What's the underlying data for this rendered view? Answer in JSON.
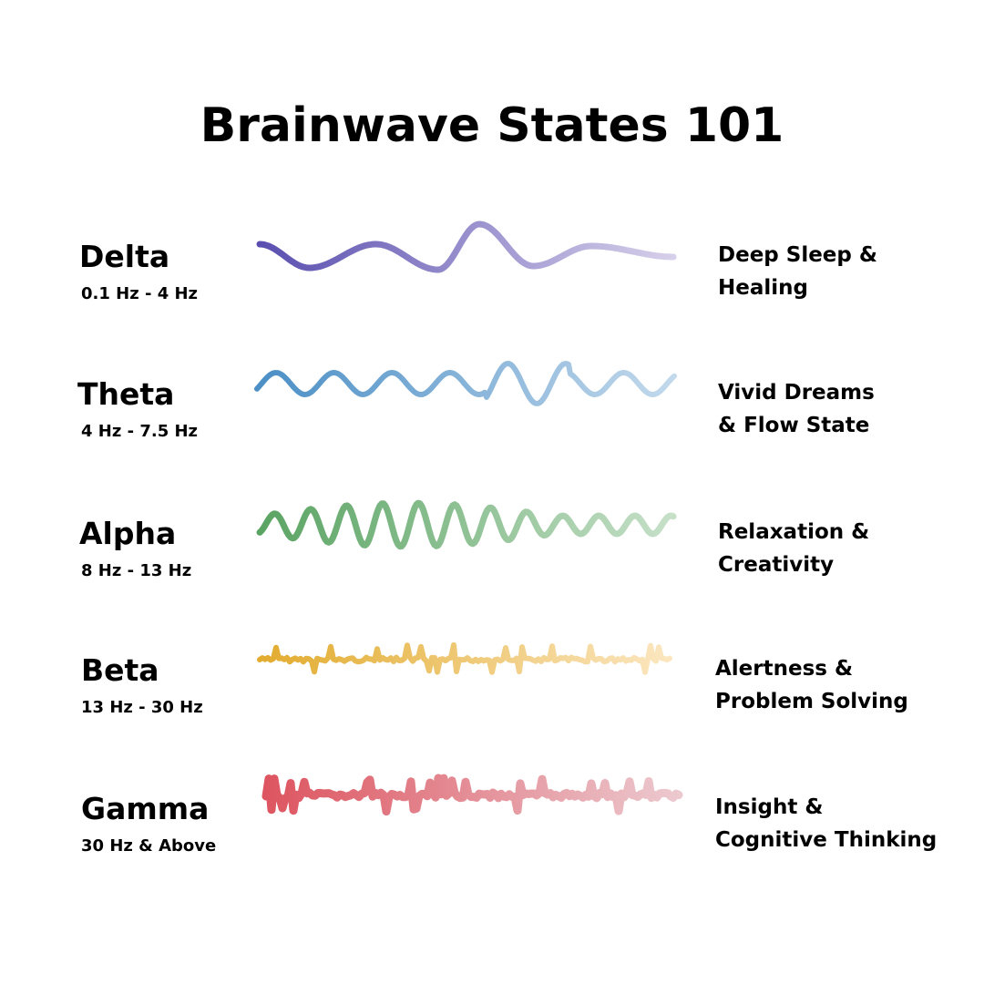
{
  "title": "Brainwave States 101",
  "states": [
    {
      "name": "Delta",
      "range": "0.1 Hz - 4 Hz",
      "desc_lines": [
        "Deep Sleep &",
        "Healing"
      ],
      "colors": [
        "#5a4fb0",
        "#d6d0ea"
      ]
    },
    {
      "name": "Theta",
      "range": "4 Hz - 7.5 Hz",
      "desc_lines": [
        "Vivid Dreams",
        "& Flow State"
      ],
      "colors": [
        "#4b8fc6",
        "#c3d9ec"
      ]
    },
    {
      "name": "Alpha",
      "range": "8 Hz - 13 Hz",
      "desc_lines": [
        "Relaxation &",
        "Creativity"
      ],
      "colors": [
        "#5aa463",
        "#c6e0c8"
      ]
    },
    {
      "name": "Beta",
      "range": "13 Hz - 30 Hz",
      "desc_lines": [
        "Alertness &",
        "Problem Solving"
      ],
      "colors": [
        "#e2ac2f",
        "#fbe6bf"
      ]
    },
    {
      "name": "Gamma",
      "range": "30 Hz & Above",
      "desc_lines": [
        "Insight &",
        "Cognitive Thinking"
      ],
      "colors": [
        "#dd5560",
        "#ecc9cf"
      ]
    }
  ]
}
